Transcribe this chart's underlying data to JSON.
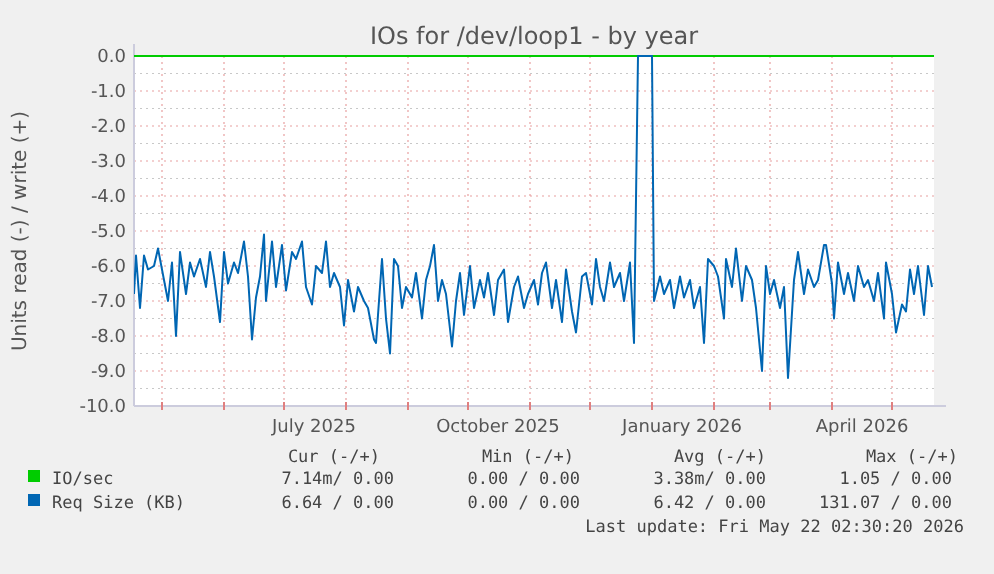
{
  "chart_data": {
    "type": "line",
    "title": "IOs for /dev/loop1 - by year",
    "ylabel": "Units read (-) / write (+)",
    "xlim": [
      "2025-04-17",
      "2026-05-22"
    ],
    "xticks": [
      {
        "value": "2025-05-01",
        "label": null
      },
      {
        "value": "2025-06-01",
        "label": null
      },
      {
        "value": "2025-07-01",
        "label": null
      },
      {
        "value": "2025-07-16",
        "label": "July 2025"
      },
      {
        "value": "2025-08-01",
        "label": null
      },
      {
        "value": "2025-09-01",
        "label": null
      },
      {
        "value": "2025-10-01",
        "label": null
      },
      {
        "value": "2025-10-16",
        "label": "October 2025"
      },
      {
        "value": "2025-11-01",
        "label": null
      },
      {
        "value": "2025-12-01",
        "label": null
      },
      {
        "value": "2026-01-01",
        "label": null
      },
      {
        "value": "2026-01-16",
        "label": "January 2026"
      },
      {
        "value": "2026-02-01",
        "label": null
      },
      {
        "value": "2026-03-01",
        "label": null
      },
      {
        "value": "2026-04-01",
        "label": null
      },
      {
        "value": "2026-04-16",
        "label": "April 2026"
      },
      {
        "value": "2026-05-01",
        "label": null
      }
    ],
    "ylim": [
      -10,
      0
    ],
    "yticks": [
      {
        "value": 0,
        "label": "0.0"
      },
      {
        "value": -0.5,
        "label": null
      },
      {
        "value": -1,
        "label": "-1.0"
      },
      {
        "value": -1.5,
        "label": null
      },
      {
        "value": -2,
        "label": "-2.0"
      },
      {
        "value": -2.5,
        "label": null
      },
      {
        "value": -3,
        "label": "-3.0"
      },
      {
        "value": -3.5,
        "label": null
      },
      {
        "value": -4,
        "label": "-4.0"
      },
      {
        "value": -4.5,
        "label": null
      },
      {
        "value": -5,
        "label": "-5.0"
      },
      {
        "value": -5.5,
        "label": null
      },
      {
        "value": -6,
        "label": "-6.0"
      },
      {
        "value": -6.5,
        "label": null
      },
      {
        "value": -7,
        "label": "-7.0"
      },
      {
        "value": -7.5,
        "label": null
      },
      {
        "value": -8,
        "label": "-8.0"
      },
      {
        "value": -8.5,
        "label": null
      },
      {
        "value": -9,
        "label": "-9.0"
      },
      {
        "value": -9.5,
        "label": null
      },
      {
        "value": -10,
        "label": "-10.0"
      }
    ],
    "grid": true,
    "legend": "bottom",
    "series": [
      {
        "name": "IO/sec",
        "color": "#00cc00",
        "x": [
          "2025-04-17",
          "2026-05-22"
        ],
        "values": [
          0,
          0
        ]
      },
      {
        "name": "Req Size (KB)",
        "color": "#0066b3",
        "x": [
          "2025-04-17",
          "2025-04-18",
          "2025-04-20",
          "2025-04-22",
          "2025-04-24",
          "2025-04-27",
          "2025-04-29",
          "2025-05-02",
          "2025-05-04",
          "2025-05-06",
          "2025-05-08",
          "2025-05-10",
          "2025-05-13",
          "2025-05-15",
          "2025-05-17",
          "2025-05-20",
          "2025-05-23",
          "2025-05-25",
          "2025-05-27",
          "2025-05-30",
          "2025-06-01",
          "2025-06-03",
          "2025-06-06",
          "2025-06-08",
          "2025-06-11",
          "2025-06-13",
          "2025-06-15",
          "2025-06-17",
          "2025-06-19",
          "2025-06-21",
          "2025-06-22",
          "2025-06-25",
          "2025-06-27",
          "2025-06-30",
          "2025-07-02",
          "2025-07-05",
          "2025-07-07",
          "2025-07-10",
          "2025-07-12",
          "2025-07-15",
          "2025-07-17",
          "2025-07-20",
          "2025-07-22",
          "2025-07-24",
          "2025-07-26",
          "2025-07-29",
          "2025-07-31",
          "2025-08-02",
          "2025-08-05",
          "2025-08-07",
          "2025-08-10",
          "2025-08-12",
          "2025-08-15",
          "2025-08-16",
          "2025-08-19",
          "2025-08-21",
          "2025-08-23",
          "2025-08-25",
          "2025-08-27",
          "2025-08-29",
          "2025-08-31",
          "2025-09-03",
          "2025-09-05",
          "2025-09-08",
          "2025-09-10",
          "2025-09-12",
          "2025-09-14",
          "2025-09-16",
          "2025-09-18",
          "2025-09-20",
          "2025-09-23",
          "2025-09-25",
          "2025-09-27",
          "2025-09-29",
          "2025-10-02",
          "2025-10-04",
          "2025-10-07",
          "2025-10-09",
          "2025-10-11",
          "2025-10-14",
          "2025-10-16",
          "2025-10-19",
          "2025-10-21",
          "2025-10-24",
          "2025-10-26",
          "2025-10-29",
          "2025-10-31",
          "2025-11-03",
          "2025-11-05",
          "2025-11-07",
          "2025-11-09",
          "2025-11-12",
          "2025-11-14",
          "2025-11-17",
          "2025-11-19",
          "2025-11-22",
          "2025-11-24",
          "2025-11-27",
          "2025-11-29",
          "2025-12-02",
          "2025-12-04",
          "2025-12-06",
          "2025-12-08",
          "2025-12-11",
          "2025-12-13",
          "2025-12-16",
          "2025-12-18",
          "2025-12-21",
          "2025-12-23",
          "2025-12-25",
          "2026-01-01",
          "2026-01-02",
          "2026-01-05",
          "2026-01-07",
          "2026-01-10",
          "2026-01-12",
          "2026-01-15",
          "2026-01-17",
          "2026-01-20",
          "2026-01-22",
          "2026-01-25",
          "2026-01-27",
          "2026-01-29",
          "2026-02-01",
          "2026-02-03",
          "2026-02-06",
          "2026-02-07",
          "2026-02-10",
          "2026-02-12",
          "2026-02-15",
          "2026-02-17",
          "2026-02-20",
          "2026-02-22",
          "2026-02-25",
          "2026-02-27",
          "2026-03-01",
          "2026-03-03",
          "2026-03-06",
          "2026-03-08",
          "2026-03-10",
          "2026-03-13",
          "2026-03-15",
          "2026-03-18",
          "2026-03-20",
          "2026-03-23",
          "2026-03-25",
          "2026-03-28",
          "2026-03-29",
          "2026-04-01",
          "2026-04-02",
          "2026-04-04",
          "2026-04-07",
          "2026-04-09",
          "2026-04-12",
          "2026-04-14",
          "2026-04-17",
          "2026-04-19",
          "2026-04-22",
          "2026-04-24",
          "2026-04-27",
          "2026-04-28",
          "2026-05-01",
          "2026-05-03",
          "2026-05-06",
          "2026-05-08",
          "2026-05-10",
          "2026-05-12",
          "2026-05-14",
          "2026-05-17",
          "2026-05-19",
          "2026-05-21"
        ],
        "values": [
          -6.8,
          -5.7,
          -7.2,
          -5.7,
          -6.1,
          -6.0,
          -5.5,
          -6.4,
          -7.0,
          -5.9,
          -8.0,
          -5.6,
          -6.8,
          -5.9,
          -6.3,
          -5.8,
          -6.6,
          -5.6,
          -6.3,
          -7.6,
          -5.6,
          -6.5,
          -5.9,
          -6.2,
          -5.3,
          -6.3,
          -8.1,
          -6.9,
          -6.3,
          -5.1,
          -7.0,
          -5.3,
          -6.6,
          -5.4,
          -6.7,
          -5.6,
          -5.8,
          -5.3,
          -6.6,
          -7.1,
          -6.0,
          -6.2,
          -5.3,
          -6.6,
          -6.2,
          -6.6,
          -7.7,
          -6.4,
          -7.3,
          -6.6,
          -7.0,
          -7.2,
          -8.1,
          -8.2,
          -5.8,
          -7.5,
          -8.5,
          -5.8,
          -6.0,
          -7.2,
          -6.6,
          -6.9,
          -6.2,
          -7.5,
          -6.4,
          -6.0,
          -5.4,
          -7.0,
          -6.4,
          -6.8,
          -8.3,
          -7.0,
          -6.2,
          -7.4,
          -6.0,
          -7.2,
          -6.4,
          -6.9,
          -6.2,
          -7.4,
          -6.4,
          -6.1,
          -7.6,
          -6.6,
          -6.3,
          -7.2,
          -6.8,
          -6.4,
          -7.1,
          -6.2,
          -5.9,
          -7.2,
          -6.4,
          -7.6,
          -6.1,
          -7.3,
          -7.9,
          -6.3,
          -6.2,
          -7.1,
          -5.8,
          -6.6,
          -7.0,
          -5.9,
          -6.6,
          -6.2,
          -7.0,
          -5.9,
          -8.2,
          0,
          0,
          -7.0,
          -6.3,
          -6.8,
          -6.4,
          -7.2,
          -6.3,
          -6.9,
          -6.4,
          -7.2,
          -6.6,
          -8.2,
          -5.8,
          -6.0,
          -6.3,
          -7.5,
          -5.8,
          -6.6,
          -5.5,
          -7.0,
          -6.0,
          -6.4,
          -7.2,
          -9.0,
          -6.0,
          -6.8,
          -6.4,
          -7.2,
          -6.6,
          -9.2,
          -6.4,
          -5.6,
          -6.8,
          -6.1,
          -6.6,
          -6.4,
          -5.4,
          -5.4,
          -6.5,
          -7.5,
          -5.9,
          -6.8,
          -6.2,
          -7.0,
          -6.0,
          -6.6,
          -6.4,
          -7.0,
          -6.2,
          -7.5,
          -5.9,
          -6.8,
          -7.9,
          -7.1,
          -7.3,
          -6.1,
          -6.8,
          -6.0,
          -7.4,
          -6.0,
          -6.6
        ]
      }
    ],
    "annotations": [
      "Cur (-/+)",
      "Min (-/+)",
      "Avg (-/+)",
      "Max (-/+)",
      "7.14m/ 0.00",
      "0.00 / 0.00",
      "3.38m/ 0.00",
      "1.05 / 0.00",
      "6.64 / 0.00",
      "0.00 / 0.00",
      "6.42 / 0.00",
      "131.07 / 0.00",
      "Last update: Fri May 22 02:30:20 2026"
    ]
  }
}
